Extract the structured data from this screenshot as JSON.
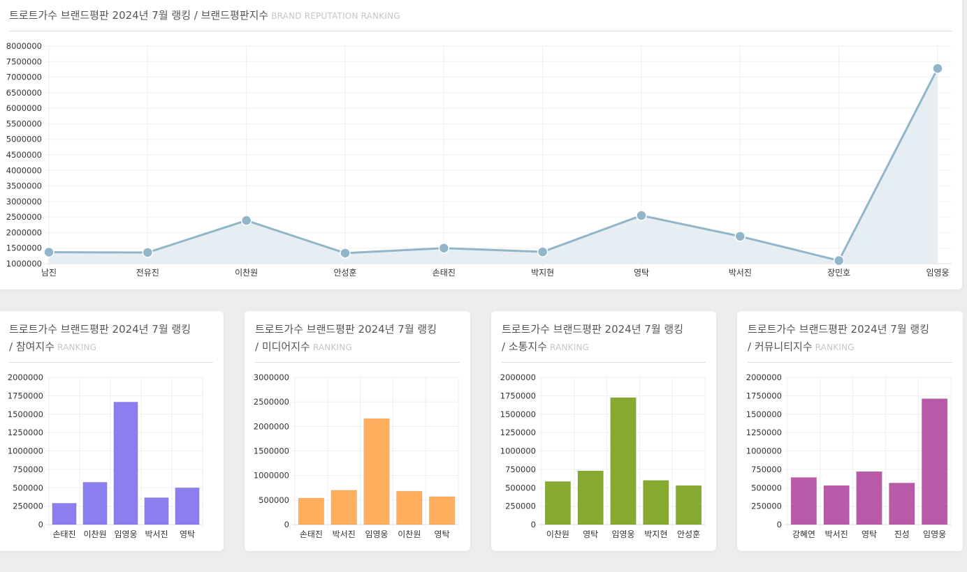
{
  "main": {
    "title": "트로트가수 브랜드평판 2024년 7월 랭킹 / 브랜드평판지수",
    "subtitle": "BRAND REPUTATION RANKING",
    "chart_data": {
      "type": "line",
      "categories": [
        "남진",
        "전유진",
        "이찬원",
        "안성훈",
        "손태진",
        "박지현",
        "영탁",
        "박서진",
        "장민호",
        "임영웅"
      ],
      "values": [
        1370000,
        1360000,
        2390000,
        1340000,
        1500000,
        1380000,
        2550000,
        1880000,
        1100000,
        7280000
      ],
      "ylim": [
        1000000,
        8000000
      ],
      "yticks": [
        "8000000",
        "7500000",
        "7000000",
        "6500000",
        "6000000",
        "5500000",
        "5000000",
        "4500000",
        "4000000",
        "3500000",
        "3000000",
        "2500000",
        "2000000",
        "1500000",
        "1000000"
      ],
      "color": "#92b6c9",
      "fill": "#e6eef3",
      "grid": true
    }
  },
  "small_charts": [
    {
      "title_line1": "트로트가수 브랜드평판 2024년 7월 랭킹",
      "title_line2": "/ 참여지수",
      "subtitle": "RANKING",
      "chart_data": {
        "type": "bar",
        "categories": [
          "손태진",
          "이찬원",
          "임영웅",
          "박서진",
          "영탁"
        ],
        "values": [
          290000,
          575000,
          1665000,
          365000,
          500000
        ],
        "ylim": [
          0,
          2000000
        ],
        "yticks": [
          "2000000",
          "1750000",
          "1500000",
          "1250000",
          "1000000",
          "750000",
          "500000",
          "250000",
          "0"
        ],
        "color": "#8b7eef",
        "grid": true
      }
    },
    {
      "title_line1": "트로트가수 브랜드평판 2024년 7월 랭킹",
      "title_line2": "/ 미디어지수",
      "subtitle": "RANKING",
      "chart_data": {
        "type": "bar",
        "categories": [
          "손태진",
          "박서진",
          "임영웅",
          "이찬원",
          "영탁"
        ],
        "values": [
          540000,
          700000,
          2160000,
          680000,
          570000
        ],
        "ylim": [
          0,
          3000000
        ],
        "yticks": [
          "3000000",
          "2500000",
          "2000000",
          "1500000",
          "1000000",
          "500000",
          "0"
        ],
        "color": "#ffae5e",
        "grid": true
      }
    },
    {
      "title_line1": "트로트가수 브랜드평판 2024년 7월 랭킹",
      "title_line2": "/ 소통지수",
      "subtitle": "RANKING",
      "chart_data": {
        "type": "bar",
        "categories": [
          "이찬원",
          "영탁",
          "임영웅",
          "박지현",
          "안성훈"
        ],
        "values": [
          585000,
          730000,
          1725000,
          600000,
          530000
        ],
        "ylim": [
          0,
          2000000
        ],
        "yticks": [
          "2000000",
          "1750000",
          "1500000",
          "1250000",
          "1000000",
          "750000",
          "500000",
          "250000",
          "0"
        ],
        "color": "#86a930",
        "grid": true
      }
    },
    {
      "title_line1": "트로트가수 브랜드평판 2024년 7월 랭킹",
      "title_line2": "/ 커뮤니티지수",
      "subtitle": "RANKING",
      "chart_data": {
        "type": "bar",
        "categories": [
          "강혜연",
          "박서진",
          "영탁",
          "진성",
          "임영웅"
        ],
        "values": [
          640000,
          530000,
          720000,
          565000,
          1710000
        ],
        "ylim": [
          0,
          2000000
        ],
        "yticks": [
          "2000000",
          "1750000",
          "1500000",
          "1250000",
          "1000000",
          "750000",
          "500000",
          "250000",
          "0"
        ],
        "color": "#b95aa9",
        "grid": true
      }
    }
  ]
}
